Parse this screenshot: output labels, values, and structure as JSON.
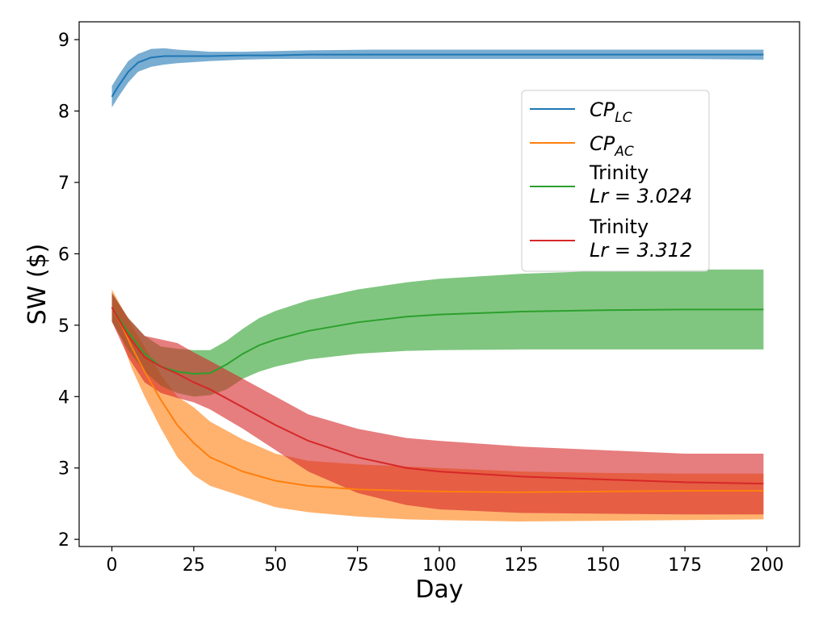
{
  "chart_data": {
    "type": "line",
    "xlabel": "Day",
    "ylabel": "SW ($)",
    "xlim": [
      -10,
      210
    ],
    "ylim": [
      1.9,
      9.25
    ],
    "xticks": [
      0,
      25,
      50,
      75,
      100,
      125,
      150,
      175,
      200
    ],
    "yticks": [
      2,
      3,
      4,
      5,
      6,
      7,
      8,
      9
    ],
    "xtick_labels": [
      "0",
      "25",
      "50",
      "75",
      "100",
      "125",
      "150",
      "175",
      "200"
    ],
    "ytick_labels": [
      "2",
      "3",
      "4",
      "5",
      "6",
      "7",
      "8",
      "9"
    ],
    "grid": false,
    "legend_position": "upper-right",
    "series": [
      {
        "name": "CP_LC",
        "label_main": "CP",
        "label_sub": "LC",
        "color": "#1f77b4",
        "x": [
          0,
          2,
          5,
          8,
          12,
          16,
          20,
          30,
          40,
          50,
          60,
          80,
          100,
          125,
          150,
          175,
          199
        ],
        "y": [
          8.2,
          8.35,
          8.55,
          8.68,
          8.75,
          8.77,
          8.77,
          8.77,
          8.78,
          8.78,
          8.79,
          8.79,
          8.79,
          8.79,
          8.79,
          8.79,
          8.79
        ],
        "lower": [
          8.05,
          8.2,
          8.4,
          8.55,
          8.62,
          8.65,
          8.67,
          8.7,
          8.72,
          8.73,
          8.73,
          8.73,
          8.73,
          8.73,
          8.73,
          8.73,
          8.72
        ],
        "upper": [
          8.35,
          8.5,
          8.7,
          8.8,
          8.87,
          8.88,
          8.86,
          8.83,
          8.83,
          8.84,
          8.85,
          8.86,
          8.86,
          8.86,
          8.86,
          8.86,
          8.86
        ]
      },
      {
        "name": "CP_AC",
        "label_main": "CP",
        "label_sub": "AC",
        "color": "#ff7f0e",
        "x": [
          0,
          3,
          6,
          10,
          15,
          20,
          25,
          30,
          40,
          50,
          60,
          75,
          90,
          100,
          125,
          150,
          175,
          199
        ],
        "y": [
          5.25,
          5.0,
          4.7,
          4.35,
          3.95,
          3.6,
          3.35,
          3.15,
          2.95,
          2.82,
          2.75,
          2.7,
          2.68,
          2.67,
          2.66,
          2.67,
          2.68,
          2.68
        ],
        "lower": [
          5.05,
          4.8,
          4.4,
          4.0,
          3.55,
          3.15,
          2.9,
          2.75,
          2.6,
          2.45,
          2.38,
          2.32,
          2.28,
          2.27,
          2.25,
          2.26,
          2.27,
          2.28
        ],
        "upper": [
          5.5,
          5.25,
          5.0,
          4.7,
          4.3,
          4.0,
          3.85,
          3.65,
          3.4,
          3.2,
          3.1,
          3.05,
          3.02,
          3.0,
          2.95,
          2.93,
          2.92,
          2.92
        ]
      },
      {
        "name": "Trinity Lr = 3.024",
        "label_main": "Trinity",
        "label_line2": "Lr = 3.024",
        "color": "#2ca02c",
        "x": [
          0,
          5,
          10,
          15,
          20,
          25,
          30,
          35,
          40,
          45,
          50,
          60,
          75,
          90,
          100,
          125,
          150,
          175,
          199
        ],
        "y": [
          5.25,
          4.9,
          4.6,
          4.42,
          4.35,
          4.32,
          4.33,
          4.45,
          4.6,
          4.72,
          4.8,
          4.92,
          5.04,
          5.12,
          5.15,
          5.19,
          5.21,
          5.22,
          5.22
        ],
        "lower": [
          5.05,
          4.65,
          4.35,
          4.15,
          4.05,
          4.0,
          4.02,
          4.1,
          4.25,
          4.35,
          4.42,
          4.52,
          4.6,
          4.64,
          4.65,
          4.66,
          4.66,
          4.66,
          4.66
        ],
        "upper": [
          5.45,
          5.1,
          4.85,
          4.7,
          4.67,
          4.65,
          4.65,
          4.78,
          4.95,
          5.1,
          5.2,
          5.35,
          5.5,
          5.6,
          5.65,
          5.72,
          5.76,
          5.78,
          5.78
        ]
      },
      {
        "name": "Trinity Lr = 3.312",
        "label_main": "Trinity",
        "label_line2": "Lr = 3.312",
        "color": "#d62728",
        "x": [
          0,
          5,
          10,
          15,
          20,
          25,
          30,
          40,
          50,
          60,
          75,
          90,
          100,
          125,
          150,
          175,
          199
        ],
        "y": [
          5.25,
          4.85,
          4.55,
          4.42,
          4.32,
          4.2,
          4.1,
          3.85,
          3.6,
          3.38,
          3.15,
          3.0,
          2.95,
          2.88,
          2.84,
          2.8,
          2.78
        ],
        "lower": [
          5.05,
          4.55,
          4.2,
          4.05,
          3.98,
          3.92,
          3.82,
          3.55,
          3.25,
          2.95,
          2.65,
          2.48,
          2.42,
          2.37,
          2.36,
          2.35,
          2.35
        ],
        "upper": [
          5.45,
          5.1,
          4.85,
          4.8,
          4.75,
          4.62,
          4.5,
          4.25,
          4.0,
          3.75,
          3.55,
          3.42,
          3.38,
          3.3,
          3.25,
          3.2,
          3.2
        ]
      }
    ]
  }
}
